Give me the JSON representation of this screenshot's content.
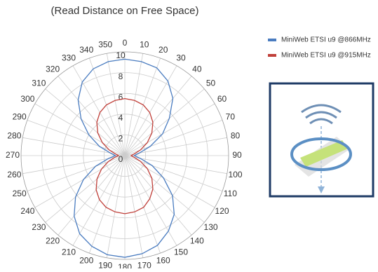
{
  "chart_data": {
    "type": "polar_line",
    "subtitle": "(Read Distance on Free Space)",
    "theta": [
      0,
      10,
      20,
      30,
      40,
      50,
      60,
      70,
      80,
      90,
      100,
      110,
      120,
      130,
      140,
      150,
      160,
      170,
      180,
      190,
      200,
      210,
      220,
      230,
      240,
      250,
      260,
      270,
      280,
      290,
      300,
      310,
      320,
      330,
      340,
      350
    ],
    "rlim": [
      0,
      10
    ],
    "rticks": [
      0,
      2,
      4,
      6,
      8,
      10
    ],
    "grid": true,
    "legend": "top-right",
    "series": [
      {
        "name": "MiniWeb ETSI u9 @866MHz",
        "color": "#4a7cc0",
        "values": [
          9.3,
          9.2,
          9.0,
          8.3,
          7.2,
          5.6,
          4.2,
          2.6,
          1.4,
          0.9,
          1.5,
          2.8,
          4.3,
          6.0,
          7.4,
          8.4,
          9.2,
          9.6,
          9.8,
          9.7,
          9.3,
          8.7,
          7.6,
          6.2,
          4.6,
          3.0,
          1.6,
          0.9,
          1.4,
          2.6,
          4.0,
          5.5,
          7.0,
          8.2,
          8.9,
          9.2
        ]
      },
      {
        "name": "MiniWeb ETSI u9 @915MHz",
        "color": "#c0403a",
        "values": [
          5.5,
          5.4,
          5.2,
          4.8,
          4.2,
          3.4,
          2.5,
          1.6,
          0.9,
          0.6,
          0.9,
          1.6,
          2.5,
          3.4,
          4.2,
          4.8,
          5.3,
          5.5,
          5.6,
          5.5,
          5.3,
          4.9,
          4.3,
          3.5,
          2.6,
          1.7,
          1.0,
          0.6,
          0.9,
          1.6,
          2.5,
          3.4,
          4.2,
          4.8,
          5.2,
          5.4
        ]
      }
    ]
  }
}
